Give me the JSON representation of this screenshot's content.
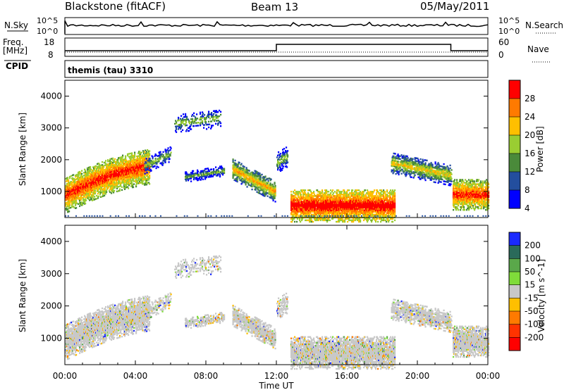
{
  "header": {
    "station": "Blackstone (fitACF)",
    "beam": "Beam 13",
    "date": "05/May/2011",
    "cpid_text": "themis (tau) 3310"
  },
  "status_panels": {
    "nsky_label": "N.Sky",
    "nsky_ticks": [
      "10^5",
      "10^0"
    ],
    "nsearch_label": "N.Search",
    "freq_label": "Freq.",
    "freq_unit": "[MHz]",
    "freq_ticks": [
      "18",
      "8"
    ],
    "nave_label": "Nave",
    "nave_ticks": [
      "60",
      "0"
    ],
    "cpid_label": "CPID"
  },
  "chart_data": [
    {
      "type": "heatmap",
      "name": "power",
      "ylabel": "Slant Range [km]",
      "ylim": [
        180,
        4500
      ],
      "yticks": [
        "1000",
        "2000",
        "3000",
        "4000"
      ],
      "xlim": [
        0,
        24
      ],
      "colorbar_label": "Power [dB]",
      "colorbar_ticks": [
        "28",
        "24",
        "20",
        "16",
        "12",
        "8",
        "4"
      ],
      "colorbar_colors": [
        "#ff0000",
        "#ff7a00",
        "#ffbf00",
        "#9acd32",
        "#4a8a3a",
        "#234e9e",
        "#0000ff"
      ],
      "regions": [
        {
          "t0": 0.0,
          "t1": 4.8,
          "r0": 880,
          "r1": 1780,
          "slope": 140,
          "level": 22,
          "ext": 350,
          "density": 0.95
        },
        {
          "t0": 4.5,
          "t1": 6.0,
          "r0": 1800,
          "r1": 2200,
          "slope": 0,
          "level": 10,
          "ext": 150,
          "density": 0.5
        },
        {
          "t0": 6.2,
          "t1": 8.8,
          "r0": 3150,
          "r1": 3300,
          "slope": 0,
          "level": 10,
          "ext": 180,
          "density": 0.35
        },
        {
          "t0": 6.8,
          "t1": 9.0,
          "r0": 1450,
          "r1": 1650,
          "slope": 0,
          "level": 9,
          "ext": 100,
          "density": 0.7
        },
        {
          "t0": 9.5,
          "t1": 11.9,
          "r0": 1700,
          "r1": 1000,
          "slope": 0,
          "level": 16,
          "ext": 200,
          "density": 0.85
        },
        {
          "t0": 12.0,
          "t1": 12.6,
          "r0": 1900,
          "r1": 2100,
          "slope": 0,
          "level": 10,
          "ext": 200,
          "density": 0.5
        },
        {
          "t0": 12.8,
          "t1": 18.7,
          "r0": 560,
          "r1": 560,
          "slope": 0,
          "level": 24,
          "ext": 320,
          "density": 0.95
        },
        {
          "t0": 18.5,
          "t1": 21.9,
          "r0": 1900,
          "r1": 1500,
          "slope": 0,
          "level": 14,
          "ext": 200,
          "density": 0.75
        },
        {
          "t0": 22.0,
          "t1": 24.0,
          "r0": 900,
          "r1": 900,
          "slope": 0,
          "level": 22,
          "ext": 300,
          "density": 0.95
        }
      ]
    },
    {
      "type": "heatmap",
      "name": "velocity",
      "ylabel": "Slant Range [km]",
      "ylim": [
        180,
        4500
      ],
      "yticks": [
        "1000",
        "2000",
        "3000",
        "4000"
      ],
      "xlim": [
        0,
        24
      ],
      "xticks": [
        "00:00",
        "04:00",
        "08:00",
        "12:00",
        "16:00",
        "20:00",
        "00:00"
      ],
      "xlabel": "Time UT",
      "colorbar_label": "Velocity [m s^-1]",
      "colorbar_ticks": [
        "200",
        "100",
        "50",
        "15",
        "-15",
        "-50",
        "-100",
        "-200"
      ],
      "colorbar_colors": [
        "#1a2aff",
        "#2a6a5a",
        "#5aa84a",
        "#7fdc3a",
        "#c8c8c8",
        "#ffbf00",
        "#ff7a00",
        "#ff3300",
        "#ff0000"
      ]
    }
  ],
  "status_data": {
    "nsky_baseline": 0.72,
    "freq_mhz": [
      {
        "t0": 0,
        "t1": 12,
        "value": 11
      },
      {
        "t0": 12,
        "t1": 21.9,
        "value": 14
      },
      {
        "t0": 21.9,
        "t1": 24,
        "value": 11
      }
    ],
    "nave_dotted": 15
  }
}
